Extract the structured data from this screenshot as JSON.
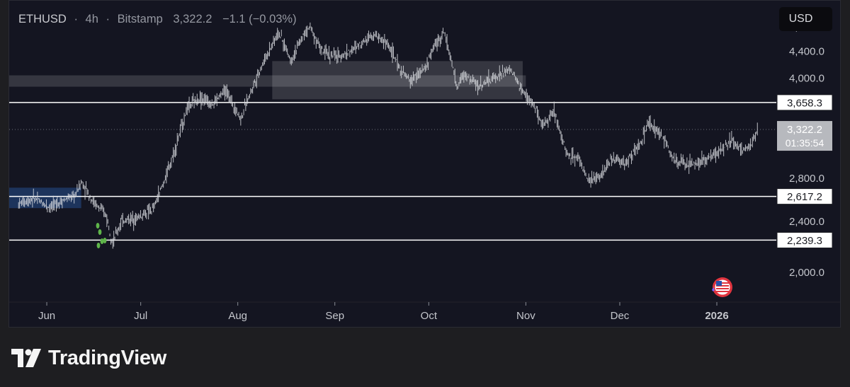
{
  "header": {
    "symbol": "ETHUSD",
    "interval": "4h",
    "exchange": "Bitstamp",
    "sep": "·",
    "last": "3,322.2",
    "change": "−1.1 (−0.03%)"
  },
  "currency_button": "USD",
  "footer": {
    "brand": "TradingView"
  },
  "colors": {
    "background": "#141521",
    "candles": "#d9dce0",
    "zone_blue": "#1f3a66",
    "zone_gray": "#ffffff",
    "level_line": "#ffffff",
    "marker_green": "#5fb54a"
  },
  "chart_data": {
    "type": "line",
    "x_axis": {
      "ticks": [
        "Jun",
        "Jul",
        "Aug",
        "Sep",
        "Oct",
        "Nov",
        "Dec",
        "2026"
      ],
      "tick_dates": [
        "2025-06-01",
        "2025-07-01",
        "2025-08-01",
        "2025-09-01",
        "2025-10-01",
        "2025-11-01",
        "2025-12-01",
        "2026-01-01"
      ],
      "range": [
        "2025-05-20",
        "2026-01-20"
      ]
    },
    "y_axis": {
      "ticks": [
        2000,
        2400,
        2800,
        4000,
        4400,
        4800
      ],
      "tick_labels": [
        "2,000.0",
        "2,400.0",
        "2,800.0",
        "4,000.0",
        "4,400.0",
        "4,800.0"
      ],
      "range": [
        1800,
        5000
      ],
      "scale": "log"
    },
    "series": [
      {
        "x": [
          "2025-05-23",
          "2025-05-28",
          "2025-06-02",
          "2025-06-06",
          "2025-06-10",
          "2025-06-12",
          "2025-06-16",
          "2025-06-20",
          "2025-06-22",
          "2025-06-25",
          "2025-06-30",
          "2025-07-05",
          "2025-07-09",
          "2025-07-12",
          "2025-07-16",
          "2025-07-20",
          "2025-07-24",
          "2025-07-28",
          "2025-08-02",
          "2025-08-06",
          "2025-08-10",
          "2025-08-14",
          "2025-08-18",
          "2025-08-22",
          "2025-08-24",
          "2025-08-28",
          "2025-09-02",
          "2025-09-07",
          "2025-09-13",
          "2025-09-18",
          "2025-09-22",
          "2025-09-25",
          "2025-09-30",
          "2025-10-03",
          "2025-10-06",
          "2025-10-10",
          "2025-10-12",
          "2025-10-17",
          "2025-10-22",
          "2025-10-27",
          "2025-10-31",
          "2025-11-04",
          "2025-11-06",
          "2025-11-10",
          "2025-11-14",
          "2025-11-18",
          "2025-11-21",
          "2025-11-25",
          "2025-11-29",
          "2025-12-03",
          "2025-12-08",
          "2025-12-10",
          "2025-12-15",
          "2025-12-18",
          "2025-12-22",
          "2025-12-26",
          "2026-01-01",
          "2026-01-06",
          "2026-01-09",
          "2026-01-12",
          "2026-01-14"
        ],
        "values": [
          2550,
          2600,
          2520,
          2580,
          2620,
          2760,
          2560,
          2450,
          2220,
          2400,
          2430,
          2500,
          2800,
          3100,
          3600,
          3720,
          3640,
          3820,
          3450,
          3900,
          4300,
          4700,
          4250,
          4650,
          4800,
          4380,
          4300,
          4420,
          4680,
          4500,
          4100,
          3950,
          4140,
          4500,
          4700,
          3850,
          4050,
          3880,
          4000,
          4120,
          3800,
          3600,
          3350,
          3550,
          3050,
          3000,
          2750,
          2830,
          3000,
          2950,
          3180,
          3400,
          3220,
          3000,
          2930,
          2950,
          3050,
          3200,
          3080,
          3150,
          3322
        ]
      }
    ],
    "zones": [
      {
        "from": "2025-05-20",
        "to": "2025-06-12",
        "low": 2510,
        "high": 2700,
        "color": "blue"
      },
      {
        "from": "2025-05-20",
        "to": "2025-11-01",
        "low": 3870,
        "high": 4030,
        "color": "gray"
      },
      {
        "from": "2025-08-12",
        "to": "2025-10-31",
        "low": 3700,
        "high": 4240,
        "color": "gray"
      }
    ],
    "levels": [
      {
        "value": 3658.3,
        "label": "3,658.3"
      },
      {
        "value": 2617.2,
        "label": "2,617.2"
      },
      {
        "value": 2239.3,
        "label": "2,239.3"
      }
    ],
    "last_price": {
      "value": 3322.2,
      "label": "3,322.2",
      "countdown": "01:35:54"
    },
    "annotations": [
      "green-markers",
      "us-flag-event-icon"
    ]
  }
}
